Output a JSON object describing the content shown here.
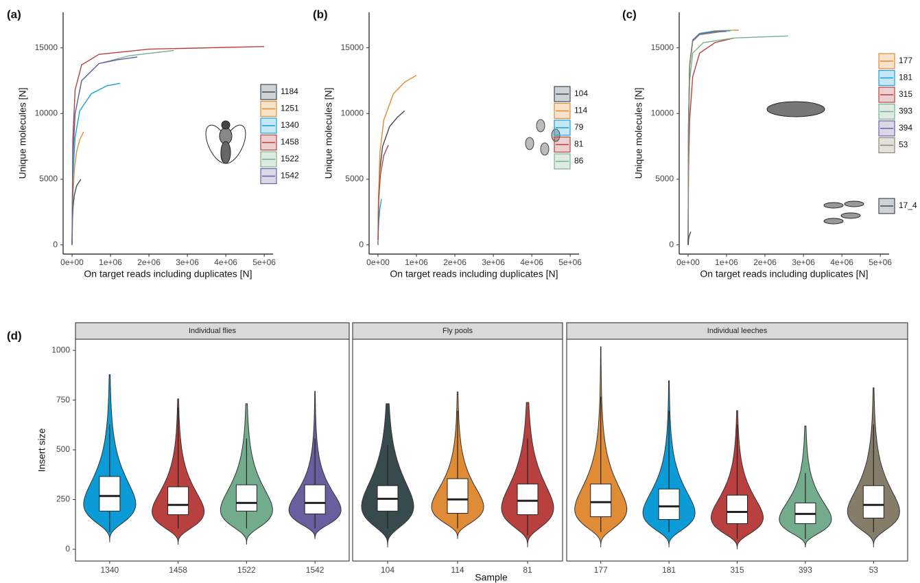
{
  "chart_data": [
    {
      "type": "line",
      "label": "(a)",
      "xlabel": "On target reads including duplicates [N]",
      "ylabel": "Unique molecules [N]",
      "xlim": [
        -232000,
        5230000
      ],
      "ylim": [
        -700,
        17700
      ],
      "xticks": [
        {
          "value": 0,
          "label": "0e+00"
        },
        {
          "value": 1000000,
          "label": "1e+06"
        },
        {
          "value": 2000000,
          "label": "2e+06"
        },
        {
          "value": 3000000,
          "label": "3e+06"
        },
        {
          "value": 4000000,
          "label": "4e+06"
        },
        {
          "value": 5000000,
          "label": "5e+06"
        }
      ],
      "yticks": [
        0,
        5000,
        10000,
        15000
      ],
      "series": [
        {
          "name": "1184",
          "color": "#3d4a52",
          "x": [
            0,
            10000,
            30000,
            60000,
            120000,
            230000
          ],
          "values": [
            0,
            1800,
            3000,
            3800,
            4500,
            5000
          ]
        },
        {
          "name": "1251",
          "color": "#e08b2f",
          "x": [
            0,
            20000,
            60000,
            120000,
            200000,
            300000
          ],
          "values": [
            0,
            3500,
            5800,
            7100,
            8000,
            8600
          ]
        },
        {
          "name": "1340",
          "color": "#1a9fd6",
          "x": [
            0,
            20000,
            80000,
            200000,
            500000,
            900000,
            1250000
          ],
          "values": [
            0,
            5000,
            8200,
            10200,
            11500,
            12100,
            12300
          ]
        },
        {
          "name": "1458",
          "color": "#b5403f",
          "x": [
            0,
            20000,
            80000,
            250000,
            700000,
            2000000,
            5000000
          ],
          "values": [
            0,
            8000,
            11800,
            13700,
            14500,
            14900,
            15100
          ]
        },
        {
          "name": "1522",
          "color": "#78b08f",
          "x": [
            0,
            20000,
            80000,
            250000,
            700000,
            1500000,
            2650000
          ],
          "values": [
            0,
            6500,
            10000,
            12500,
            13800,
            14400,
            14800
          ]
        },
        {
          "name": "1542",
          "color": "#6a5fa0",
          "x": [
            0,
            20000,
            80000,
            250000,
            700000,
            1200000,
            1700000
          ],
          "values": [
            0,
            6500,
            10000,
            12500,
            13800,
            14100,
            14300
          ]
        }
      ]
    },
    {
      "type": "line",
      "label": "(b)",
      "xlabel": "On target reads including duplicates [N]",
      "ylabel": "Unique molecules [N]",
      "xlim": [
        -232000,
        5230000
      ],
      "ylim": [
        -700,
        17700
      ],
      "xticks": [
        {
          "value": 0,
          "label": "0e+00"
        },
        {
          "value": 1000000,
          "label": "1e+06"
        },
        {
          "value": 2000000,
          "label": "2e+06"
        },
        {
          "value": 3000000,
          "label": "3e+06"
        },
        {
          "value": 4000000,
          "label": "4e+06"
        },
        {
          "value": 5000000,
          "label": "5e+06"
        }
      ],
      "yticks": [
        0,
        5000,
        10000,
        15000
      ],
      "series": [
        {
          "name": "104",
          "color": "#3d4a52",
          "x": [
            0,
            10000,
            40000,
            120000,
            300000,
            500000,
            690000
          ],
          "values": [
            0,
            3000,
            5500,
            7500,
            9000,
            9700,
            10200
          ]
        },
        {
          "name": "114",
          "color": "#e08b2f",
          "x": [
            0,
            10000,
            50000,
            150000,
            400000,
            700000,
            1000000
          ],
          "values": [
            0,
            3500,
            7000,
            9500,
            11500,
            12400,
            12900
          ]
        },
        {
          "name": "79",
          "color": "#1a9fd6",
          "x": [
            0,
            5000,
            20000,
            50000,
            90000
          ],
          "values": [
            0,
            800,
            1800,
            2800,
            3500
          ]
        },
        {
          "name": "81",
          "color": "#b5403f",
          "x": [
            0,
            5000,
            20000,
            60000,
            150000,
            270000
          ],
          "values": [
            0,
            1500,
            3500,
            5300,
            6800,
            7600
          ]
        },
        {
          "name": "86",
          "color": "#78b08f",
          "x": [
            0,
            3000,
            8000
          ],
          "values": [
            0,
            200,
            400
          ]
        }
      ]
    },
    {
      "type": "line",
      "label": "(c)",
      "xlabel": "On target reads including duplicates [N]",
      "ylabel": "Unique molecules [N]",
      "xlim": [
        -232000,
        5230000
      ],
      "ylim": [
        -700,
        17700
      ],
      "xticks": [
        {
          "value": 0,
          "label": "0e+00"
        },
        {
          "value": 1000000,
          "label": "1e+06"
        },
        {
          "value": 2000000,
          "label": "2e+06"
        },
        {
          "value": 3000000,
          "label": "3e+06"
        },
        {
          "value": 4000000,
          "label": "4e+06"
        },
        {
          "value": 5000000,
          "label": "5e+06"
        }
      ],
      "yticks": [
        0,
        5000,
        10000,
        15000
      ],
      "series": [
        {
          "name": "177",
          "color": "#e08b2f",
          "x": [
            0,
            10000,
            40000,
            120000,
            300000,
            700000,
            1320000
          ],
          "values": [
            0,
            9000,
            13500,
            15500,
            16100,
            16300,
            16350
          ]
        },
        {
          "name": "181",
          "color": "#1a9fd6",
          "x": [
            0,
            10000,
            40000,
            120000,
            300000,
            700000,
            1100000
          ],
          "values": [
            0,
            9200,
            13700,
            15600,
            16100,
            16250,
            16300
          ]
        },
        {
          "name": "315",
          "color": "#b5403f",
          "x": [
            0,
            10000,
            40000,
            120000,
            300000,
            700000,
            1200000
          ],
          "values": [
            0,
            5500,
            9500,
            12800,
            14600,
            15400,
            15750
          ]
        },
        {
          "name": "393",
          "color": "#78b08f",
          "x": [
            0,
            10000,
            40000,
            120000,
            400000,
            1200000,
            2600000
          ],
          "values": [
            0,
            8000,
            12500,
            14600,
            15400,
            15750,
            15900
          ]
        },
        {
          "name": "394",
          "color": "#6a5fa0",
          "x": [
            0,
            10000,
            40000,
            120000,
            300000,
            700000,
            1000000
          ],
          "values": [
            0,
            9200,
            13700,
            15600,
            16050,
            16200,
            16250
          ]
        },
        {
          "name": "53",
          "color": "#8b8674",
          "x": [
            0,
            10000,
            40000,
            120000,
            300000,
            800000
          ],
          "values": [
            0,
            9000,
            13600,
            15500,
            16000,
            16200
          ]
        },
        {
          "name": "17_4",
          "color": "#3d4a52",
          "x": [
            0,
            10000,
            30000,
            70000
          ],
          "values": [
            0,
            400,
            700,
            1000
          ]
        }
      ]
    },
    {
      "type": "violin",
      "label": "(d)",
      "xlabel": "Sample",
      "ylabel": "Insert size",
      "ylim": [
        -59,
        1056
      ],
      "yticks": [
        0,
        250,
        500,
        750,
        1000
      ],
      "facets": [
        {
          "title": "Individual flies",
          "categories": [
            "1340",
            "1458",
            "1522",
            "1542"
          ],
          "colors": [
            "#0b9bd7",
            "#b8413f",
            "#72ac8c",
            "#6a5f9e"
          ],
          "min": [
            35,
            24,
            24,
            52
          ],
          "max": [
            878,
            756,
            732,
            794
          ],
          "whisker_low": [
            87,
            105,
            105,
            105
          ],
          "q1": [
            192,
            174,
            192,
            178
          ],
          "median": [
            268,
            223,
            233,
            233
          ],
          "q3": [
            366,
            314,
            324,
            324
          ],
          "whisker_high": [
            627,
            714,
            557,
            557
          ]
        },
        {
          "title": "Fly pools",
          "categories": [
            "104",
            "114",
            "81"
          ],
          "colors": [
            "#374b4f",
            "#e08b35",
            "#b8413f"
          ],
          "min": [
            10,
            52,
            10
          ],
          "max": [
            732,
            791,
            738
          ],
          "whisker_low": [
            105,
            105,
            70
          ],
          "q1": [
            192,
            181,
            174
          ],
          "median": [
            254,
            251,
            244
          ],
          "q3": [
            320,
            355,
            328
          ],
          "whisker_high": [
            523,
            697,
            557
          ]
        },
        {
          "title": "Individual leeches",
          "categories": [
            "177",
            "181",
            "315",
            "393",
            "53"
          ],
          "colors": [
            "#e08b35",
            "#0b9bd7",
            "#b8413f",
            "#72ac8c",
            "#857c6a"
          ],
          "min": [
            10,
            10,
            0,
            10,
            10
          ],
          "max": [
            1018,
            847,
            697,
            620,
            812
          ],
          "whisker_low": [
            87,
            87,
            52,
            52,
            87
          ],
          "q1": [
            164,
            150,
            129,
            129,
            157
          ],
          "median": [
            237,
            216,
            188,
            178,
            223
          ],
          "q3": [
            328,
            303,
            272,
            233,
            320
          ],
          "whisker_high": [
            767,
            697,
            627,
            383,
            627
          ]
        }
      ]
    }
  ]
}
